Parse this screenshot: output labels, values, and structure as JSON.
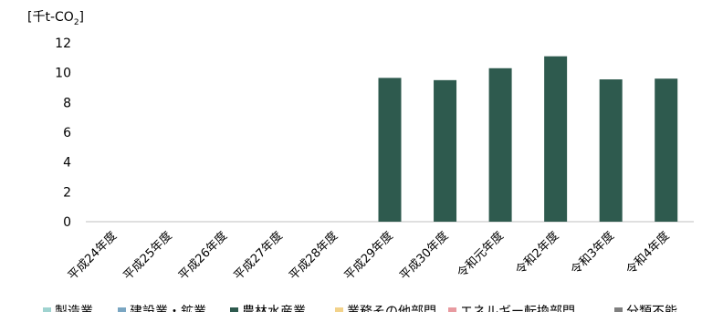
{
  "chart_data": {
    "type": "bar",
    "unit_label": {
      "prefix": "[千t-CO",
      "sub": "2",
      "suffix": "]"
    },
    "categories": [
      "平成24年度",
      "平成25年度",
      "平成26年度",
      "平成27年度",
      "平成28年度",
      "平成29年度",
      "平成30年度",
      "令和元年度",
      "令和2年度",
      "令和3年度",
      "令和4年度"
    ],
    "series": [
      {
        "name": "製造業",
        "color": "#9fd3d0",
        "values": [
          0,
          0,
          0,
          0,
          0,
          0,
          0,
          0,
          0,
          0,
          0
        ]
      },
      {
        "name": "建設業・鉱業",
        "color": "#7aa6c2",
        "values": [
          0,
          0,
          0,
          0,
          0,
          0,
          0,
          0,
          0,
          0,
          0
        ]
      },
      {
        "name": "農林水産業",
        "color": "#2e5a4e",
        "values": [
          0,
          0,
          0,
          0,
          0,
          9.65,
          9.5,
          10.3,
          11.1,
          9.55,
          9.6
        ]
      },
      {
        "name": "業務その他部門",
        "color": "#f2d28a",
        "values": [
          0,
          0,
          0,
          0,
          0,
          0,
          0,
          0,
          0,
          0,
          0
        ]
      },
      {
        "name": "エネルギー転換部門",
        "color": "#e89aa0",
        "values": [
          0,
          0,
          0,
          0,
          0,
          0,
          0,
          0,
          0,
          0,
          0
        ]
      },
      {
        "name": "分類不能",
        "color": "#7f7f7f",
        "values": [
          0,
          0,
          0,
          0,
          0,
          0,
          0,
          0,
          0,
          0,
          0
        ]
      }
    ],
    "ylim": [
      0,
      12
    ],
    "yticks": [
      0,
      2,
      4,
      6,
      8,
      10,
      12
    ],
    "grid": false,
    "legend_position": "bottom"
  }
}
